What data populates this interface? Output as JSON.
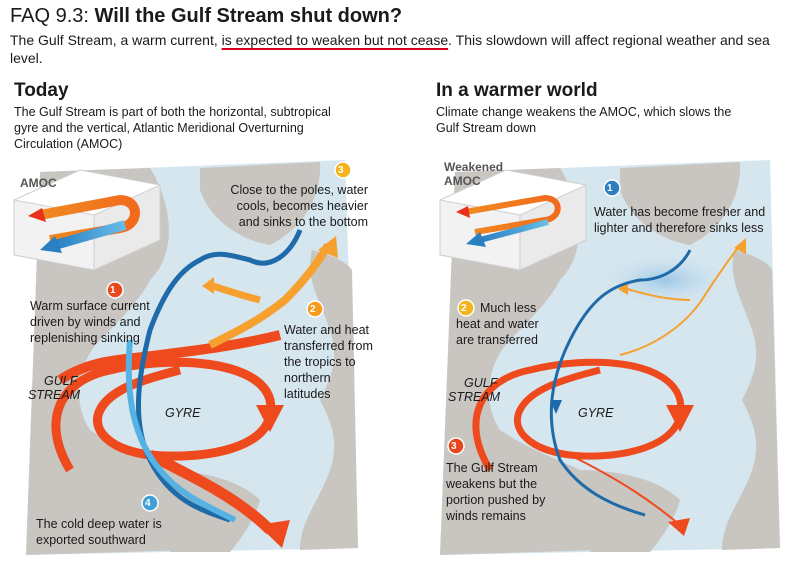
{
  "header": {
    "faq_number": "FAQ 9.3:",
    "question": "Will the Gulf Stream shut down?",
    "intro_before": "The Gulf Stream, a warm current, ",
    "intro_highlight": "is expected to weaken but not cease",
    "intro_after": ". This slowdown will affect regional weather and sea level."
  },
  "today": {
    "title": "Today",
    "description": "The Gulf Stream is part of both the horizontal, subtropical gyre and the vertical, Atlantic Meridional Overturning Circulation (AMOC)",
    "amoc_label": "AMOC",
    "gulf_stream_label_1": "GULF",
    "gulf_stream_label_2": "STREAM",
    "gyre_label": "GYRE",
    "callouts": [
      {
        "number": "1",
        "text": "Warm surface current driven by winds and replenishing sinking",
        "color": "#e8471c"
      },
      {
        "number": "2",
        "text": "Water and heat transferred from the tropics to northern latitudes",
        "color": "#f39c1e"
      },
      {
        "number": "3",
        "text": "Close to the poles, water cools, becomes heavier and sinks to the bottom",
        "color": "#f3b41e"
      },
      {
        "number": "4",
        "text": "The cold deep water is exported southward",
        "color": "#3fa0d8"
      }
    ]
  },
  "warmer": {
    "title": "In a warmer world",
    "description": "Climate change weakens the AMOC, which slows the Gulf Stream down",
    "amoc_label_1": "Weakened",
    "amoc_label_2": "AMOC",
    "gulf_stream_label_1": "GULF",
    "gulf_stream_label_2": "STREAM",
    "gyre_label": "GYRE",
    "callouts": [
      {
        "number": "1",
        "text": "Water has become fresher and lighter and therefore sinks less",
        "color": "#2a7fc0"
      },
      {
        "number": "2",
        "text": "Much less heat and water are transferred",
        "color": "#f3b41e"
      },
      {
        "number": "3",
        "text": "The Gulf Stream weakens but the portion pushed by winds remains",
        "color": "#e8471c"
      }
    ]
  },
  "colors": {
    "ocean": "#d6e6ef",
    "land": "#c9c6c2",
    "warm": "#ee4a1d",
    "orange": "#f6a030",
    "deep_blue": "#1f6aa8",
    "light_blue": "#56b2e2",
    "highlight": "#d9001b"
  }
}
